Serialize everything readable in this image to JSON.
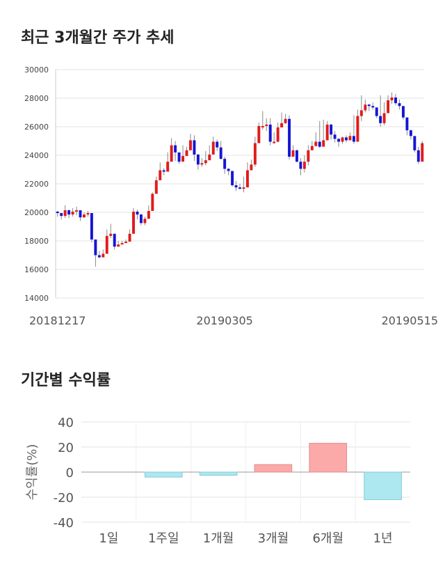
{
  "chart1": {
    "title": "최근 3개월간 주가 추세"
  },
  "chart2": {
    "title": "기간별 수익률"
  },
  "colors": {
    "up": "#e11b1b",
    "down": "#1515d6",
    "pos_bar": "#fca9a9",
    "neg_bar": "#ade8f0",
    "grid": "#e3e3e3"
  },
  "chart_data": [
    {
      "type": "candlestick",
      "title": "",
      "ylim": [
        14000,
        30000
      ],
      "yticks": [
        14000,
        16000,
        18000,
        20000,
        22000,
        24000,
        26000,
        28000,
        30000
      ],
      "x_tick_labels": [
        "20181217",
        "20190305",
        "20190515"
      ],
      "x_tick_indices": [
        0,
        44,
        87
      ],
      "grid": true,
      "close": [
        19950,
        19750,
        20150,
        19850,
        20050,
        20150,
        19650,
        19850,
        19950,
        18100,
        17000,
        16850,
        17100,
        18350,
        18500,
        17600,
        17750,
        17850,
        17950,
        18500,
        20050,
        19850,
        19250,
        19550,
        20100,
        21300,
        22250,
        22950,
        22850,
        23550,
        24700,
        24200,
        23550,
        23950,
        24350,
        25050,
        24050,
        23350,
        23450,
        23650,
        24050,
        24950,
        24550,
        23750,
        23050,
        22900,
        21900,
        21750,
        21700,
        21750,
        22950,
        23350,
        24850,
        26050,
        26050,
        26150,
        24950,
        24950,
        25950,
        26250,
        26550,
        23900,
        24350,
        23550,
        23050,
        23550,
        24350,
        24650,
        24950,
        24600,
        25050,
        26150,
        25450,
        25150,
        24950,
        25250,
        25050,
        25350,
        24950,
        26750,
        27150,
        27550,
        27450,
        27350,
        26750,
        26250,
        26950,
        27850,
        28050,
        27650,
        27450,
        26650,
        25750,
        25350,
        24350,
        23550,
        24850
      ],
      "wick_min": [
        19700,
        19500,
        19600,
        19600,
        19700,
        19800,
        19400,
        19600,
        19700,
        17900,
        16200,
        16800,
        16900,
        17500,
        18200,
        17400,
        17700,
        17800,
        17900,
        18300,
        19500,
        19500,
        19100,
        19100,
        19800,
        20900,
        21700,
        22700,
        22600,
        23200,
        24200,
        23600,
        23400,
        23800,
        24100,
        24800,
        23600,
        23000,
        23200,
        23300,
        23900,
        24400,
        24300,
        23700,
        22700,
        22600,
        21800,
        21500,
        21600,
        21400,
        21800,
        23200,
        23200,
        25600,
        25800,
        25700,
        24700,
        24800,
        24900,
        26000,
        26200,
        23700,
        24000,
        23500,
        22600,
        22800,
        23300,
        24400,
        24600,
        24500,
        24700,
        25200,
        25100,
        24900,
        24600,
        24800,
        24900,
        25100,
        24800,
        25000,
        26400,
        27000,
        27100,
        27200,
        26600,
        26000,
        26100,
        27400,
        27600,
        27500,
        27200,
        26500,
        25400,
        25100,
        24200,
        23400,
        23700
      ],
      "wick_max": [
        20100,
        19900,
        20500,
        20200,
        20300,
        20400,
        19900,
        20000,
        20100,
        19200,
        17400,
        17300,
        17400,
        18800,
        19200,
        18500,
        18000,
        18000,
        18100,
        18800,
        20300,
        20200,
        19900,
        19700,
        20500,
        21400,
        22500,
        23500,
        23100,
        24200,
        25200,
        25000,
        24200,
        24700,
        24600,
        25500,
        25400,
        24100,
        23800,
        24300,
        24700,
        25300,
        25100,
        25000,
        23900,
        23100,
        22700,
        22200,
        22000,
        22500,
        23500,
        23700,
        25300,
        26300,
        27100,
        26600,
        26600,
        25600,
        26300,
        27000,
        26900,
        26800,
        24700,
        24400,
        23800,
        24000,
        24700,
        25000,
        25600,
        26400,
        26500,
        26400,
        26200,
        25700,
        25200,
        25300,
        25400,
        25600,
        26800,
        27200,
        28200,
        27900,
        27600,
        27700,
        27300,
        28200,
        27700,
        28200,
        28400,
        28300,
        27900,
        27100,
        26400,
        25800,
        25300,
        24600,
        25000
      ]
    },
    {
      "type": "bar",
      "title": "",
      "categories": [
        "1일",
        "1주일",
        "1개월",
        "3개월",
        "6개월",
        "1년"
      ],
      "values": [
        0,
        -4,
        -2.5,
        6,
        23,
        -22
      ],
      "ylabel": "수익률(%)",
      "ylim": [
        -40,
        40
      ],
      "yticks": [
        -40,
        -20,
        0,
        20,
        40
      ],
      "grid": true
    }
  ]
}
